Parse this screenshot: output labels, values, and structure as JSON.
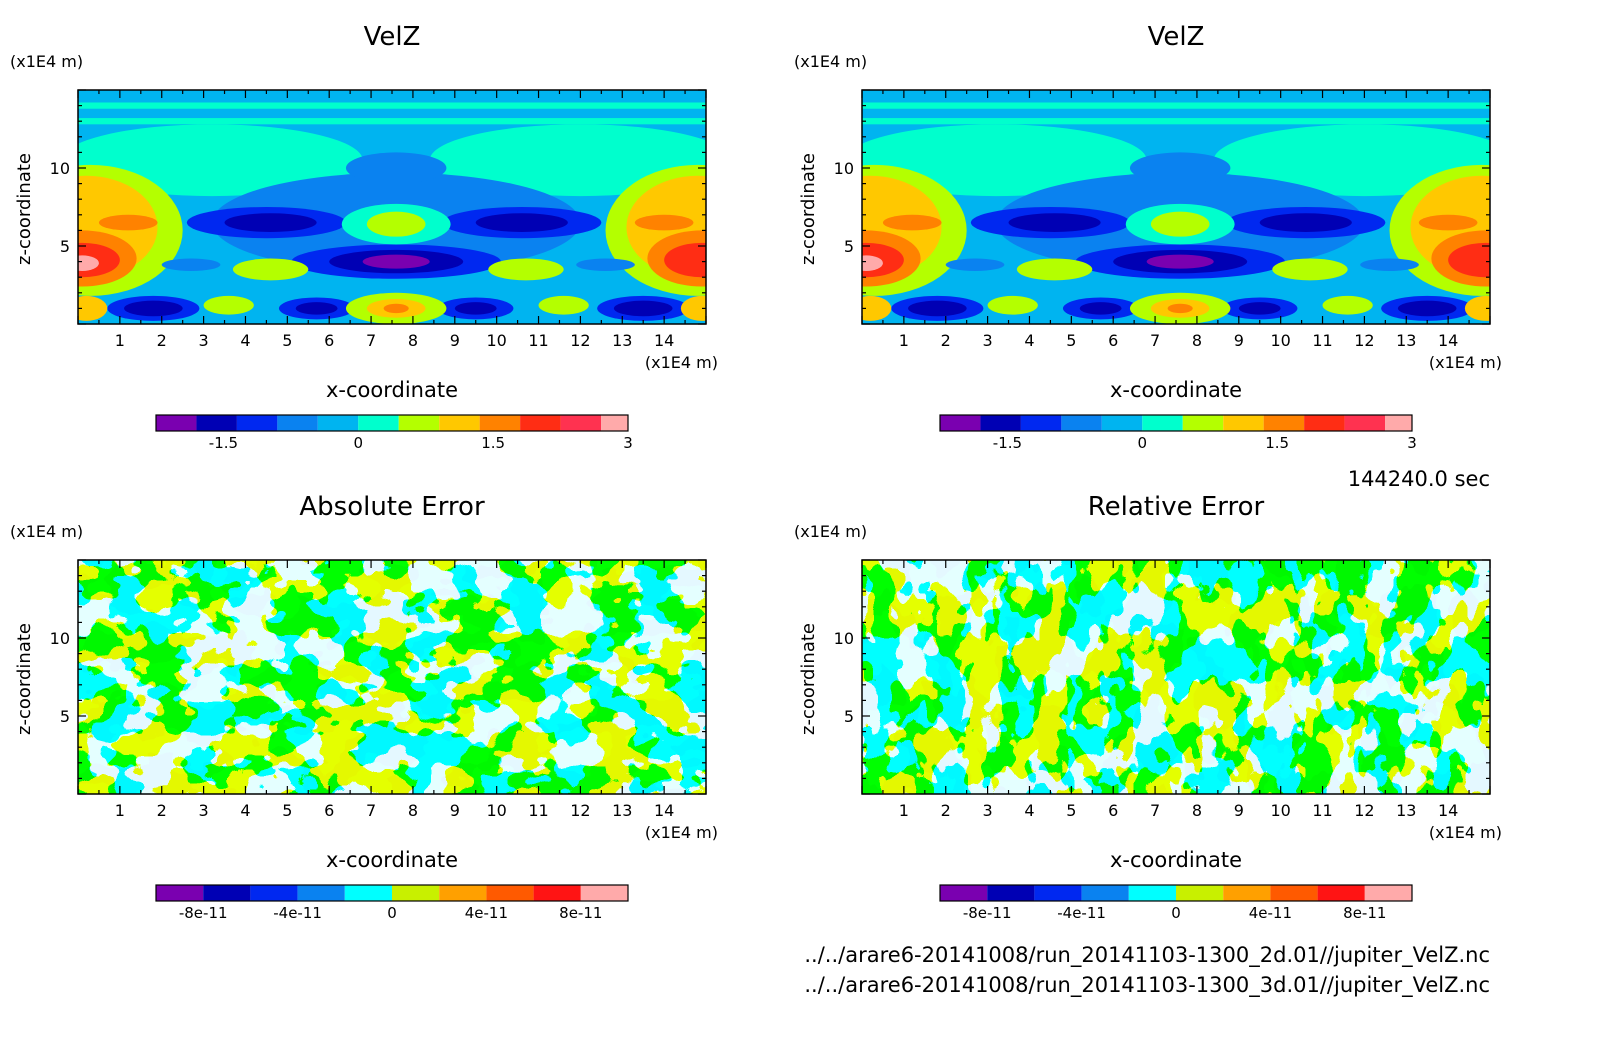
{
  "time_label": "144240.0 sec",
  "file_paths": [
    "../../arare6-20141008/run_20141103-1300_2d.01//jupiter_VelZ.nc",
    "../../arare6-20141008/run_20141103-1300_3d.01//jupiter_VelZ.nc"
  ],
  "chart_data": [
    {
      "type": "heatmap",
      "title": "VelZ",
      "xlabel": "x-coordinate",
      "ylabel": "z-coordinate",
      "x_unit": "(x1E4 m)",
      "y_unit": "(x1E4 m)",
      "xlim": [
        0,
        15
      ],
      "ylim": [
        0,
        15
      ],
      "x_ticks": [
        1,
        2,
        3,
        4,
        5,
        6,
        7,
        8,
        9,
        10,
        11,
        12,
        13,
        14
      ],
      "y_ticks": [
        5,
        10
      ],
      "colorbar": {
        "levels": [
          -2.25,
          -1.8,
          -1.35,
          -0.9,
          -0.45,
          0,
          0.45,
          0.9,
          1.35,
          1.8,
          2.25,
          2.7,
          3
        ],
        "colors": [
          "#7a00b0",
          "#0000b4",
          "#0028f0",
          "#0a82f0",
          "#00b4f0",
          "#00ffcd",
          "#b4ff00",
          "#ffc800",
          "#ff8200",
          "#ff2d14",
          "#ff3250",
          "#ffaaaa"
        ],
        "tick_values": [
          -1.5,
          0,
          1.5,
          3
        ],
        "tick_labels": [
          "-1.5",
          "0",
          "1.5",
          "3"
        ]
      },
      "grid": false
    },
    {
      "type": "heatmap",
      "title": "VelZ",
      "xlabel": "x-coordinate",
      "ylabel": "z-coordinate",
      "x_unit": "(x1E4 m)",
      "y_unit": "(x1E4 m)",
      "xlim": [
        0,
        15
      ],
      "ylim": [
        0,
        15
      ],
      "x_ticks": [
        1,
        2,
        3,
        4,
        5,
        6,
        7,
        8,
        9,
        10,
        11,
        12,
        13,
        14
      ],
      "y_ticks": [
        5,
        10
      ],
      "colorbar": {
        "levels": [
          -2.25,
          -1.8,
          -1.35,
          -0.9,
          -0.45,
          0,
          0.45,
          0.9,
          1.35,
          1.8,
          2.25,
          2.7,
          3
        ],
        "colors": [
          "#7a00b0",
          "#0000b4",
          "#0028f0",
          "#0a82f0",
          "#00b4f0",
          "#00ffcd",
          "#b4ff00",
          "#ffc800",
          "#ff8200",
          "#ff2d14",
          "#ff3250",
          "#ffaaaa"
        ],
        "tick_values": [
          -1.5,
          0,
          1.5,
          3
        ],
        "tick_labels": [
          "-1.5",
          "0",
          "1.5",
          "3"
        ]
      },
      "grid": false
    },
    {
      "type": "heatmap",
      "title": "Absolute Error",
      "xlabel": "x-coordinate",
      "ylabel": "z-coordinate",
      "x_unit": "(x1E4 m)",
      "y_unit": "(x1E4 m)",
      "xlim": [
        0,
        15
      ],
      "ylim": [
        0,
        15
      ],
      "x_ticks": [
        1,
        2,
        3,
        4,
        5,
        6,
        7,
        8,
        9,
        10,
        11,
        12,
        13,
        14
      ],
      "y_ticks": [
        5,
        10
      ],
      "dominant_colors": [
        "#00ffff",
        "#c8f000"
      ],
      "colorbar": {
        "levels": [
          -1e-10,
          -8e-11,
          -6e-11,
          -4e-11,
          -2e-11,
          0,
          2e-11,
          4e-11,
          6e-11,
          8e-11,
          1e-10
        ],
        "colors": [
          "#7a00b0",
          "#0000b4",
          "#0028f0",
          "#0a82f0",
          "#00ffff",
          "#c8f000",
          "#ffa000",
          "#ff5a00",
          "#ff1414",
          "#ffaaaa"
        ],
        "tick_values": [
          -8e-11,
          -4e-11,
          0,
          4e-11,
          8e-11
        ],
        "tick_labels": [
          "-8e-11",
          "-4e-11",
          "0",
          "4e-11",
          "8e-11"
        ]
      },
      "grid": false
    },
    {
      "type": "heatmap",
      "title": "Relative Error",
      "xlabel": "x-coordinate",
      "ylabel": "z-coordinate",
      "x_unit": "(x1E4 m)",
      "y_unit": "(x1E4 m)",
      "xlim": [
        0,
        15
      ],
      "ylim": [
        0,
        15
      ],
      "x_ticks": [
        1,
        2,
        3,
        4,
        5,
        6,
        7,
        8,
        9,
        10,
        11,
        12,
        13,
        14
      ],
      "y_ticks": [
        5,
        10
      ],
      "dominant_colors": [
        "#00ffff",
        "#c8f000"
      ],
      "colorbar": {
        "levels": [
          -1e-10,
          -8e-11,
          -6e-11,
          -4e-11,
          -2e-11,
          0,
          2e-11,
          4e-11,
          6e-11,
          8e-11,
          1e-10
        ],
        "colors": [
          "#7a00b0",
          "#0000b4",
          "#0028f0",
          "#0a82f0",
          "#00ffff",
          "#c8f000",
          "#ffa000",
          "#ff5a00",
          "#ff1414",
          "#ffaaaa"
        ],
        "tick_values": [
          -8e-11,
          -4e-11,
          0,
          4e-11,
          8e-11
        ],
        "tick_labels": [
          "-8e-11",
          "-4e-11",
          "0",
          "4e-11",
          "8e-11"
        ]
      },
      "grid": false
    }
  ]
}
